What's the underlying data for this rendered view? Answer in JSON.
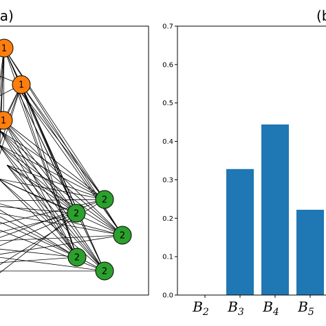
{
  "panels": {
    "left_label": "(a)",
    "right_label": "(b)"
  },
  "network": {
    "group1_color": "#ff7f0e",
    "group2_color": "#2ca02c",
    "edge_color": "#000000",
    "group1_label": "1",
    "group2_label": "2"
  },
  "chart_data": {
    "type": "bar",
    "categories": [
      "B2",
      "B3",
      "B4",
      "B5"
    ],
    "category_labels": [
      {
        "base": "B",
        "sub": "2"
      },
      {
        "base": "B",
        "sub": "3"
      },
      {
        "base": "B",
        "sub": "4"
      },
      {
        "base": "B",
        "sub": "5"
      }
    ],
    "values": [
      0.0,
      0.328,
      0.444,
      0.222
    ],
    "ylim": [
      0,
      0.7
    ],
    "yticks": [
      "0.0",
      "0.1",
      "0.2",
      "0.3",
      "0.4",
      "0.5",
      "0.6",
      "0.7"
    ],
    "bar_color": "#1f77b4",
    "title": "",
    "xlabel": "",
    "ylabel": "",
    "grid": false
  }
}
